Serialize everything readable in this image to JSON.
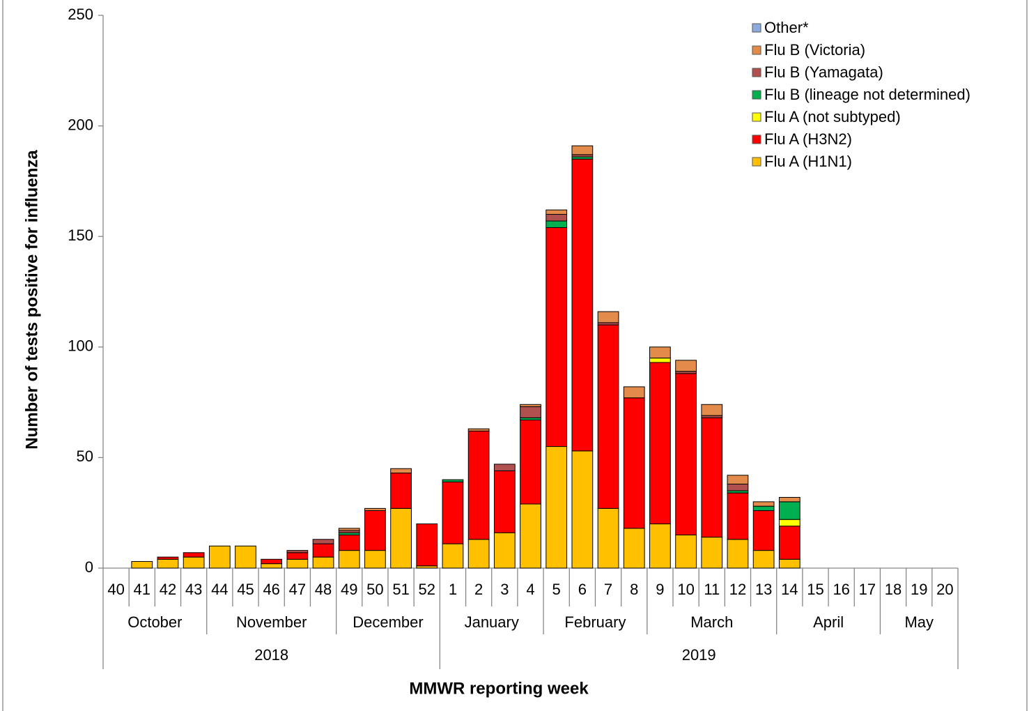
{
  "chart_data": {
    "type": "stacked-bar",
    "x_label": "MMWR reporting week",
    "y_label": "Number of tests positive for influenza",
    "categories": [
      "40",
      "41",
      "42",
      "43",
      "44",
      "45",
      "46",
      "47",
      "48",
      "49",
      "50",
      "51",
      "52",
      "1",
      "2",
      "3",
      "4",
      "5",
      "6",
      "7",
      "8",
      "9",
      "10",
      "11",
      "12",
      "13",
      "14",
      "15",
      "16",
      "17",
      "18",
      "19",
      "20"
    ],
    "month_groups": [
      {
        "label": "October",
        "categories": [
          "40",
          "41",
          "42",
          "43"
        ]
      },
      {
        "label": "November",
        "categories": [
          "44",
          "45",
          "46",
          "47",
          "48"
        ]
      },
      {
        "label": "December",
        "categories": [
          "49",
          "50",
          "51",
          "52"
        ]
      },
      {
        "label": "January",
        "categories": [
          "1",
          "2",
          "3",
          "4"
        ]
      },
      {
        "label": "February",
        "categories": [
          "5",
          "6",
          "7",
          "8"
        ]
      },
      {
        "label": "March",
        "categories": [
          "9",
          "10",
          "11",
          "12",
          "13"
        ]
      },
      {
        "label": "April",
        "categories": [
          "14",
          "15",
          "16",
          "17"
        ]
      },
      {
        "label": "May",
        "categories": [
          "18",
          "19",
          "20"
        ]
      }
    ],
    "year_groups": [
      {
        "label": "2018",
        "categories": [
          "40",
          "41",
          "42",
          "43",
          "44",
          "45",
          "46",
          "47",
          "48",
          "49",
          "50",
          "51",
          "52"
        ]
      },
      {
        "label": "2019",
        "categories": [
          "1",
          "2",
          "3",
          "4",
          "5",
          "6",
          "7",
          "8",
          "9",
          "10",
          "11",
          "12",
          "13",
          "14",
          "15",
          "16",
          "17",
          "18",
          "19",
          "20"
        ]
      }
    ],
    "series": [
      {
        "name": "Flu A (H1N1)",
        "color": "#FFC000",
        "values": [
          0,
          3,
          4,
          5,
          10,
          10,
          2,
          4,
          5,
          8,
          8,
          27,
          1,
          11,
          13,
          16,
          29,
          55,
          53,
          27,
          18,
          20,
          15,
          14,
          13,
          8,
          4,
          0,
          0,
          0,
          0,
          0,
          0
        ]
      },
      {
        "name": "Flu A (H3N2)",
        "color": "#FF0000",
        "values": [
          0,
          0,
          1,
          2,
          0,
          0,
          2,
          3,
          6,
          7,
          18,
          16,
          19,
          28,
          49,
          28,
          38,
          99,
          132,
          83,
          59,
          73,
          73,
          54,
          21,
          18,
          15,
          0,
          0,
          0,
          0,
          0,
          0
        ]
      },
      {
        "name": "Flu A (not subtyped)",
        "color": "#FFFF00",
        "values": [
          0,
          0,
          0,
          0,
          0,
          0,
          0,
          0,
          0,
          0,
          0,
          0,
          0,
          0,
          0,
          0,
          0,
          0,
          0,
          0,
          0,
          2,
          0,
          0,
          0,
          0,
          3,
          0,
          0,
          0,
          0,
          0,
          0
        ]
      },
      {
        "name": "Flu B (lineage not determined)",
        "color": "#00B050",
        "values": [
          0,
          0,
          0,
          0,
          0,
          0,
          0,
          0,
          0,
          1,
          0,
          0,
          0,
          1,
          0,
          0,
          1,
          3,
          1,
          0,
          0,
          0,
          0,
          0,
          1,
          2,
          8,
          0,
          0,
          0,
          0,
          0,
          0
        ]
      },
      {
        "name": "Flu B (Yamagata)",
        "color": "#B0504F",
        "values": [
          0,
          0,
          0,
          0,
          0,
          0,
          0,
          1,
          2,
          1,
          0,
          0,
          0,
          0,
          0,
          3,
          5,
          3,
          1,
          1,
          0,
          0,
          1,
          1,
          3,
          0,
          0,
          0,
          0,
          0,
          0,
          0,
          0
        ]
      },
      {
        "name": "Flu B (Victoria)",
        "color": "#E28B4B",
        "values": [
          0,
          0,
          0,
          0,
          0,
          0,
          0,
          0,
          0,
          1,
          1,
          2,
          0,
          0,
          1,
          0,
          1,
          2,
          4,
          5,
          5,
          5,
          5,
          5,
          4,
          2,
          2,
          0,
          0,
          0,
          0,
          0,
          0
        ]
      },
      {
        "name": "Other*",
        "color": "#8EA9DB",
        "values": [
          0,
          0,
          0,
          0,
          0,
          0,
          0,
          0,
          0,
          0,
          0,
          0,
          0,
          0,
          0,
          0,
          0,
          0,
          0,
          0,
          0,
          0,
          0,
          0,
          0,
          0,
          0,
          0,
          0,
          0,
          0,
          0,
          0
        ]
      }
    ],
    "ylim": [
      0,
      250
    ],
    "yticks": [
      0,
      50,
      100,
      150,
      200,
      250
    ],
    "legend": "top-right"
  }
}
